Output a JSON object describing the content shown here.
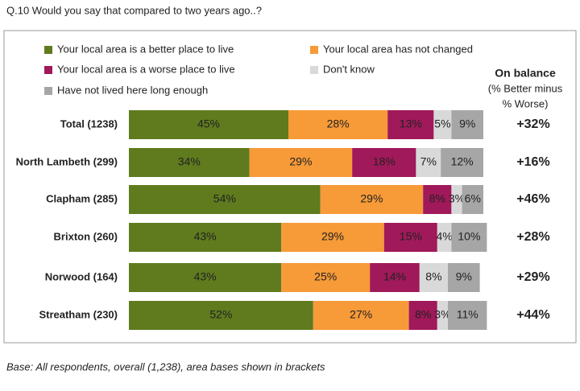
{
  "chart_data": {
    "type": "stacked-bar-horizontal",
    "title": "Q.10 Would you say that compared to two years ago..?",
    "footnote": "Base: All respondents, overall (1,238), area bases shown in brackets",
    "categories": [
      "Total (1238)",
      "North Lambeth (299)",
      "Clapham (285)",
      "Brixton (260)",
      "Norwood (164)",
      "Streatham (230)"
    ],
    "xlim": [
      0,
      100
    ],
    "series": [
      {
        "name": "Your local area is a better place to live",
        "color": "#5f7b1e",
        "values": [
          45,
          34,
          54,
          43,
          43,
          52
        ],
        "value_labels": [
          "45%",
          "34%",
          "54%",
          "43%",
          "43%",
          "52%"
        ]
      },
      {
        "name": "Your local area has not changed",
        "color": "#f79a38",
        "values": [
          28,
          29,
          29,
          29,
          25,
          27
        ],
        "value_labels": [
          "28%",
          "29%",
          "29%",
          "29%",
          "25%",
          "27%"
        ]
      },
      {
        "name": "Your local area is a worse place to live",
        "color": "#a0195a",
        "values": [
          13,
          18,
          8,
          15,
          14,
          8
        ],
        "value_labels": [
          "13%",
          "18%",
          "8%",
          "15%",
          "14%",
          "8%"
        ]
      },
      {
        "name": "Don't know",
        "color": "#d9d9d9",
        "values": [
          5,
          7,
          3,
          4,
          8,
          3
        ],
        "value_labels": [
          "5%",
          "7%",
          "3%",
          "4%",
          "8%",
          "3%"
        ]
      },
      {
        "name": "Have not lived here long enough",
        "color": "#a6a6a6",
        "values": [
          9,
          12,
          6,
          10,
          9,
          11
        ],
        "value_labels": [
          "9%",
          "12%",
          "6%",
          "10%",
          "9%",
          "11%"
        ]
      }
    ],
    "balance": {
      "title": "On balance",
      "subtitle": [
        "(% Better minus",
        "% Worse)"
      ],
      "color": "#5f8a2a",
      "values": [
        32,
        16,
        46,
        28,
        29,
        44
      ],
      "value_labels": [
        "+32%",
        "+16%",
        "+46%",
        "+28%",
        "+29%",
        "+44%"
      ]
    }
  }
}
